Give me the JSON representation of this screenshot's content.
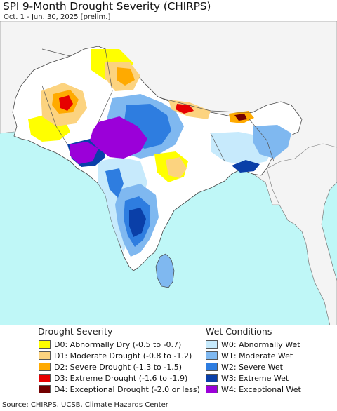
{
  "title": "SPI 9-Month Drought Severity (CHIRPS)",
  "subtitle": "Oct. 1 - Jun. 30, 2025 [prelim.]",
  "legend": {
    "drought_heading": "Drought Severity",
    "wet_heading": "Wet Conditions",
    "drought": [
      {
        "label": "D0: Abnormally Dry (-0.5 to -0.7)",
        "color": "#ffff00"
      },
      {
        "label": "D1: Moderate Drought (-0.8 to -1.2)",
        "color": "#fcd37f"
      },
      {
        "label": "D2: Severe Drought (-1.3 to -1.5)",
        "color": "#ffaa00"
      },
      {
        "label": "D3: Extreme Drought (-1.6 to -1.9)",
        "color": "#e60000"
      },
      {
        "label": "D4: Exceptional Drought (-2.0 or less)",
        "color": "#730000"
      }
    ],
    "wet": [
      {
        "label": "W0: Abnormally Wet",
        "color": "#c7eafc"
      },
      {
        "label": "W1: Moderate Wet",
        "color": "#7fb8f0"
      },
      {
        "label": "W2: Severe Wet",
        "color": "#2e7de0"
      },
      {
        "label": "W3: Extreme Wet",
        "color": "#0a3fa8"
      },
      {
        "label": "W4: Exceptional Wet",
        "color": "#9b00d9"
      }
    ]
  },
  "source": "Source: CHIRPS, UCSB, Climate Hazards Center",
  "colors": {
    "ocean": "#bff7f7",
    "land_outside": "#f4f4f4",
    "land_normal": "#ffffff",
    "border": "#444444"
  }
}
